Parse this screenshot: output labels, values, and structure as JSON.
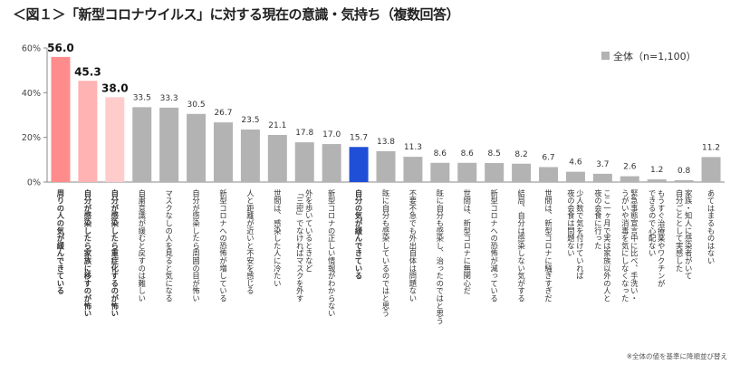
{
  "title": "＜図１＞「新型コロナウイルス」に対する現在の意識・気持ち（複数回答）",
  "footnote": "※全体の値を基準に降順並び替え",
  "colors": {
    "default_bar": "#b3b3b3",
    "highlight_1": "#ff8c8c",
    "highlight_2": "#ffb3b3",
    "highlight_3": "#ffcccc",
    "blue_bar": "#1f4fd6",
    "red_label": "#e00000",
    "blue_label": "#1a3cc8"
  },
  "chart_data": {
    "type": "bar",
    "ylim": [
      0,
      60
    ],
    "yticks": [
      0,
      20,
      40,
      60
    ],
    "ytick_labels": [
      "0%",
      "20%",
      "40%",
      "60%"
    ],
    "grid": false,
    "legend": {
      "position": "top-right",
      "entries": [
        "全体（n=1,100）"
      ]
    },
    "series": [
      {
        "name": "全体（n=1,100）",
        "values": [
          56.0,
          45.3,
          38.0,
          33.5,
          33.3,
          30.5,
          26.7,
          23.5,
          21.1,
          17.8,
          17.0,
          15.7,
          13.8,
          11.3,
          8.6,
          8.6,
          8.5,
          8.2,
          6.7,
          4.6,
          3.7,
          2.6,
          1.2,
          0.8,
          11.2
        ]
      }
    ],
    "value_labels": [
      "56.0",
      "45.3",
      "38.0",
      "33.5",
      "33.3",
      "30.5",
      "26.7",
      "23.5",
      "21.1",
      "17.8",
      "17.0",
      "15.7",
      "13.8",
      "11.3",
      "8.6",
      "8.6",
      "8.5",
      "8.2",
      "6.7",
      "4.6",
      "3.7",
      "2.6",
      "1.2",
      "0.8",
      "11.2"
    ],
    "categories": [
      [
        "周りの人の気が緩んできている"
      ],
      [
        "自分が感染したら家族に移すのが怖い"
      ],
      [
        "自分が感染したら重症化するのが怖い"
      ],
      [
        "自粛意識が緩むと戻すのは難しい"
      ],
      [
        "マスクなしの人を見ると気になる"
      ],
      [
        "自分が感染したら周囲の目が怖い"
      ],
      [
        "新型コロナへの恐怖が増している"
      ],
      [
        "人と距離が近いと不安を感じる"
      ],
      [
        "世間は、感染した人に冷たい"
      ],
      [
        "外を歩いているときなど",
        "「三密」でなければマスクを外す"
      ],
      [
        "新型コロナの正しい情報がわからない"
      ],
      [
        "自分の気が緩んできている"
      ],
      [
        "既に自分も感染しているのではと思う"
      ],
      [
        "不要不急でも外出自体は問題ない"
      ],
      [
        "既に自分も感染し、治ったのではと思う"
      ],
      [
        "世間は、新型コロナに無関心だ"
      ],
      [
        "新型コロナへの恐怖が減っている"
      ],
      [
        "結局、自分は感染しない気がする"
      ],
      [
        "世間は、新型コロナに騒ぎすぎだ"
      ],
      [
        "少人数で気を付けていれば",
        "夜の会食は問題ない"
      ],
      [
        "ここ一ヶ月で実は家族以外の人と",
        "夜の会食に行った"
      ],
      [
        "緊急事態宣言中に比べ、手洗い・",
        "うがいや消毒を気にしなくなった"
      ],
      [
        "もうすぐ治療薬やワクチンが",
        "できるので心配ない"
      ],
      [
        "家族・知人に感染者がいて",
        "自分ごととして実感した"
      ],
      [
        "あてはまるものはない"
      ]
    ]
  }
}
